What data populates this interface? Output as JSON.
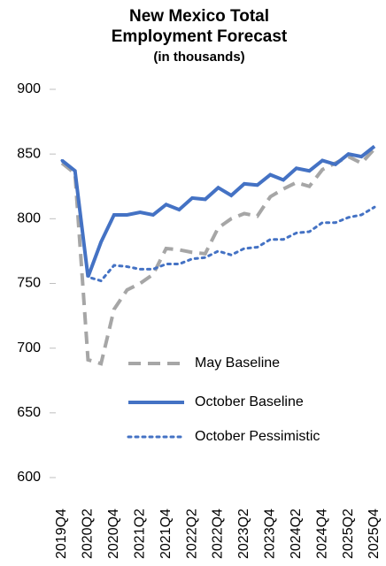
{
  "chart_data": {
    "type": "line",
    "title": [
      "New Mexico Total",
      "Employment Forecast"
    ],
    "subtitle": "(in thousands)",
    "categories": [
      "2019Q4",
      null,
      "2020Q2",
      null,
      "2020Q4",
      null,
      "2021Q2",
      null,
      "2021Q4",
      null,
      "2022Q2",
      null,
      "2022Q4",
      null,
      "2023Q2",
      null,
      "2023Q4",
      null,
      "2024Q2",
      null,
      "2024Q4",
      null,
      "2025Q2",
      null,
      "2025Q4"
    ],
    "series": [
      {
        "name": "May Baseline",
        "color": "#a6a6a6",
        "style": "dashed",
        "values": [
          843,
          835,
          691,
          688,
          730,
          745,
          750,
          757,
          777,
          776,
          774,
          773,
          793,
          800,
          804,
          802,
          817,
          823,
          828,
          825,
          838,
          843,
          848,
          843,
          854
        ]
      },
      {
        "name": "October Baseline",
        "color": "#4472c4",
        "style": "solid",
        "values": [
          845,
          837,
          755,
          782,
          803,
          803,
          805,
          803,
          811,
          807,
          816,
          815,
          824,
          818,
          827,
          826,
          834,
          830,
          839,
          837,
          845,
          842,
          850,
          848,
          856
        ]
      },
      {
        "name": "October Pessimistic",
        "color": "#4472c4",
        "style": "dotted",
        "values": [
          845,
          837,
          755,
          752,
          764,
          763,
          761,
          761,
          765,
          765,
          769,
          770,
          775,
          772,
          777,
          778,
          784,
          784,
          789,
          790,
          797,
          797,
          801,
          803,
          809
        ]
      }
    ],
    "ylim": [
      600,
      900
    ],
    "yticks": [
      600,
      650,
      700,
      750,
      800,
      850,
      900
    ],
    "grid": false
  }
}
